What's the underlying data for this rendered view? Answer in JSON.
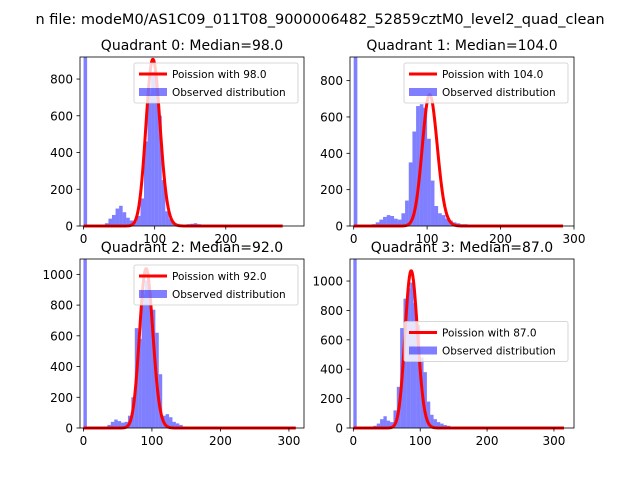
{
  "suptitle": "n file: modeM0/AS1C09_011T08_9000006482_52859cztM0_level2_quad_clean",
  "chart_data": [
    {
      "type": "bar+line",
      "title": "Quadrant 0: Median=98.0",
      "median": 98.0,
      "xlim": [
        -5,
        310
      ],
      "ylim": [
        0,
        920
      ],
      "xticks": [
        0,
        100,
        200
      ],
      "xticklabels": [
        "0",
        "100",
        "200"
      ],
      "yticks": [
        0,
        200,
        400,
        600,
        800
      ],
      "yticklabels": [
        "0",
        "200",
        "400",
        "600",
        "800"
      ],
      "legend": {
        "placement": "upper right",
        "line_label": "Poission with 98.0",
        "bar_label": "Observed distribution"
      },
      "line_x_range": [
        0,
        280
      ],
      "bars": {
        "name": "Observed distribution",
        "bin_width": 5,
        "spike": {
          "x": 0,
          "value": 920
        },
        "left_edges": [
          30,
          35,
          40,
          45,
          50,
          55,
          60,
          65,
          70,
          75,
          80,
          85,
          90,
          95,
          100,
          105,
          110,
          115,
          120,
          125,
          130,
          135,
          140,
          145,
          150,
          155,
          160,
          165,
          170,
          175,
          180,
          185,
          190,
          195,
          200,
          205
        ],
        "values": [
          15,
          40,
          60,
          95,
          110,
          75,
          45,
          30,
          25,
          55,
          150,
          460,
          720,
          840,
          810,
          600,
          250,
          80,
          40,
          15,
          12,
          8,
          5,
          10,
          12,
          15,
          10,
          8,
          5,
          5,
          4,
          3,
          3,
          2,
          2,
          2
        ]
      }
    },
    {
      "type": "bar+line",
      "title": "Quadrant 1: Median=104.0",
      "median": 104.0,
      "xlim": [
        -5,
        300
      ],
      "ylim": [
        0,
        930
      ],
      "xticks": [
        0,
        100,
        200,
        300
      ],
      "xticklabels": [
        "0",
        "100",
        "200",
        "300"
      ],
      "yticks": [
        0,
        200,
        400,
        600,
        800
      ],
      "yticklabels": [
        "0",
        "200",
        "400",
        "600",
        "800"
      ],
      "legend": {
        "placement": "upper right",
        "line_label": "Poission with 104.0",
        "bar_label": "Observed distribution"
      },
      "line_x_range": [
        0,
        285
      ],
      "bars": {
        "name": "Observed distribution",
        "bin_width": 5,
        "spike": {
          "x": 0,
          "value": 930
        },
        "left_edges": [
          25,
          30,
          35,
          40,
          45,
          50,
          55,
          60,
          65,
          70,
          75,
          80,
          85,
          90,
          95,
          100,
          105,
          110,
          115,
          120,
          125,
          130,
          135,
          140,
          145,
          150,
          155,
          160,
          165,
          170,
          175,
          180,
          185,
          190
        ],
        "values": [
          10,
          20,
          35,
          50,
          60,
          55,
          40,
          35,
          70,
          140,
          350,
          520,
          660,
          670,
          650,
          480,
          250,
          110,
          70,
          60,
          40,
          30,
          20,
          15,
          10,
          10,
          8,
          6,
          5,
          5,
          4,
          3,
          3,
          2
        ]
      }
    },
    {
      "type": "bar+line",
      "title": "Quadrant 2: Median=92.0",
      "median": 92.0,
      "xlim": [
        -5,
        322
      ],
      "ylim": [
        0,
        1100
      ],
      "xticks": [
        0,
        100,
        200,
        300
      ],
      "xticklabels": [
        "0",
        "100",
        "200",
        "300"
      ],
      "yticks": [
        0,
        200,
        400,
        600,
        800,
        1000
      ],
      "yticklabels": [
        "0",
        "200",
        "400",
        "600",
        "800",
        "1000"
      ],
      "legend": {
        "placement": "upper right",
        "line_label": "Poission with 92.0",
        "bar_label": "Observed distribution"
      },
      "line_x_range": [
        0,
        310
      ],
      "bars": {
        "name": "Observed distribution",
        "bin_width": 5,
        "spike": {
          "x": 0,
          "value": 1100
        },
        "left_edges": [
          30,
          35,
          40,
          45,
          50,
          55,
          60,
          65,
          70,
          75,
          80,
          85,
          90,
          95,
          100,
          105,
          110,
          115,
          120,
          125,
          130,
          135,
          140,
          145,
          150,
          155,
          160,
          165,
          170,
          175,
          180,
          185,
          190,
          195,
          200,
          205
        ],
        "values": [
          10,
          20,
          40,
          55,
          45,
          35,
          40,
          80,
          200,
          650,
          580,
          870,
          960,
          870,
          770,
          620,
          350,
          80,
          90,
          70,
          40,
          30,
          20,
          10,
          8,
          6,
          5,
          4,
          4,
          3,
          3,
          2,
          2,
          2,
          2,
          2
        ]
      }
    },
    {
      "type": "bar+line",
      "title": "Quadrant 3: Median=87.0",
      "median": 87.0,
      "xlim": [
        -5,
        330
      ],
      "ylim": [
        0,
        1150
      ],
      "xticks": [
        0,
        100,
        200,
        300
      ],
      "xticklabels": [
        "0",
        "100",
        "200",
        "300"
      ],
      "yticks": [
        0,
        200,
        400,
        600,
        800,
        1000
      ],
      "yticklabels": [
        "0",
        "200",
        "400",
        "600",
        "800",
        "1000"
      ],
      "legend": {
        "placement": "center right",
        "line_label": "Poission with 87.0",
        "bar_label": "Observed distribution"
      },
      "line_x_range": [
        0,
        315
      ],
      "bars": {
        "name": "Observed distribution",
        "bin_width": 5,
        "spike": {
          "x": 0,
          "value": 1150
        },
        "left_edges": [
          30,
          35,
          40,
          45,
          50,
          55,
          60,
          65,
          70,
          75,
          80,
          85,
          90,
          95,
          100,
          105,
          110,
          115,
          120,
          125,
          130,
          135,
          140,
          145,
          150,
          155,
          160,
          165,
          170,
          175,
          180,
          185,
          190,
          195,
          200
        ],
        "values": [
          15,
          30,
          60,
          80,
          50,
          40,
          120,
          280,
          680,
          880,
          950,
          990,
          850,
          700,
          480,
          380,
          180,
          90,
          60,
          40,
          30,
          20,
          15,
          10,
          10,
          8,
          6,
          5,
          4,
          3,
          3,
          3,
          2,
          2,
          2
        ]
      }
    }
  ]
}
